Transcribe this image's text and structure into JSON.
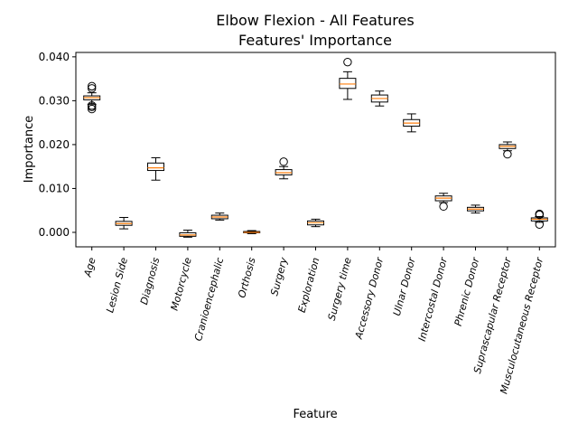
{
  "chart_data": {
    "type": "box",
    "title_line1": "Elbow Flexion - All Features",
    "title_line2": "Features' Importance",
    "xlabel": "Feature",
    "ylabel": "Importance",
    "ylim": [
      -0.0033,
      0.041
    ],
    "yticks": [
      0.0,
      0.01,
      0.02,
      0.03,
      0.04
    ],
    "ytick_labels": [
      "0.000",
      "0.010",
      "0.020",
      "0.030",
      "0.040"
    ],
    "grid": false,
    "median_color": "#ff7f0e",
    "box_color": "#000000",
    "boxes": [
      {
        "label": "Age",
        "whislo": 0.0292,
        "q1": 0.0302,
        "med": 0.0307,
        "q3": 0.0311,
        "whishi": 0.0318,
        "fliers": [
          0.0328,
          0.0333,
          0.0289,
          0.0286,
          0.0281
        ]
      },
      {
        "label": "Lesion Side",
        "whislo": 0.0008,
        "q1": 0.0016,
        "med": 0.002,
        "q3": 0.0025,
        "whishi": 0.0034,
        "fliers": []
      },
      {
        "label": "Diagnosis",
        "whislo": 0.0119,
        "q1": 0.0141,
        "med": 0.0147,
        "q3": 0.0158,
        "whishi": 0.017,
        "fliers": []
      },
      {
        "label": "Motorcycle",
        "whislo": -0.0011,
        "q1": -0.0009,
        "med": -0.0006,
        "q3": -0.0001,
        "whishi": 0.0005,
        "fliers": []
      },
      {
        "label": "Cranioencephalic",
        "whislo": 0.0028,
        "q1": 0.0031,
        "med": 0.0035,
        "q3": 0.0039,
        "whishi": 0.0044,
        "fliers": []
      },
      {
        "label": "Orthosis",
        "whislo": -0.0003,
        "q1": -0.0001,
        "med": 0.0,
        "q3": 0.0002,
        "whishi": 0.0004,
        "fliers": []
      },
      {
        "label": "Surgery",
        "whislo": 0.0122,
        "q1": 0.0131,
        "med": 0.0136,
        "q3": 0.0143,
        "whishi": 0.015,
        "fliers": [
          0.0161
        ]
      },
      {
        "label": "Exploration",
        "whislo": 0.0013,
        "q1": 0.0017,
        "med": 0.0022,
        "q3": 0.0026,
        "whishi": 0.003,
        "fliers": []
      },
      {
        "label": "Surgery time",
        "whislo": 0.0303,
        "q1": 0.0328,
        "med": 0.0338,
        "q3": 0.0351,
        "whishi": 0.0366,
        "fliers": [
          0.0388
        ]
      },
      {
        "label": "Accessory Donor",
        "whislo": 0.0288,
        "q1": 0.0297,
        "med": 0.0305,
        "q3": 0.0313,
        "whishi": 0.0322,
        "fliers": []
      },
      {
        "label": "Ulnar Donor",
        "whislo": 0.0229,
        "q1": 0.0242,
        "med": 0.0249,
        "q3": 0.0257,
        "whishi": 0.027,
        "fliers": []
      },
      {
        "label": "Intercostal Donor",
        "whislo": 0.0068,
        "q1": 0.0072,
        "med": 0.0078,
        "q3": 0.0083,
        "whishi": 0.0089,
        "fliers": [
          0.0059
        ]
      },
      {
        "label": "Phrenic Donor",
        "whislo": 0.0044,
        "q1": 0.0049,
        "med": 0.0053,
        "q3": 0.0057,
        "whishi": 0.0062,
        "fliers": []
      },
      {
        "label": "Suprascapular Receptor",
        "whislo": 0.0186,
        "q1": 0.0191,
        "med": 0.0196,
        "q3": 0.02,
        "whishi": 0.0206,
        "fliers": [
          0.0178
        ]
      },
      {
        "label": "Musculocutaneous Receptor",
        "whislo": 0.0023,
        "q1": 0.0026,
        "med": 0.003,
        "q3": 0.0033,
        "whishi": 0.0036,
        "fliers": [
          0.004,
          0.0042,
          0.0018
        ]
      }
    ]
  }
}
